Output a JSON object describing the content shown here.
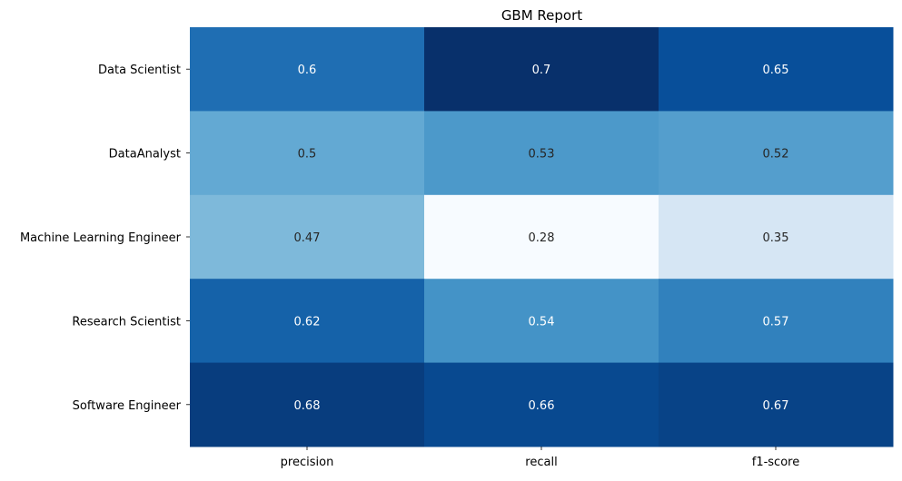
{
  "chart_data": {
    "type": "heatmap",
    "title": "GBM Report",
    "xlabel": "",
    "ylabel": "",
    "columns": [
      "precision",
      "recall",
      "f1-score"
    ],
    "rows": [
      "Data Scientist",
      "DataAnalyst",
      "Machine Learning Engineer",
      "Research Scientist",
      "Software Engineer"
    ],
    "values": [
      [
        0.6,
        0.7,
        0.65
      ],
      [
        0.5,
        0.53,
        0.52
      ],
      [
        0.47,
        0.28,
        0.35
      ],
      [
        0.62,
        0.54,
        0.57
      ],
      [
        0.68,
        0.66,
        0.67
      ]
    ],
    "colormap": "Blues",
    "grid": false,
    "colorbar": false
  }
}
